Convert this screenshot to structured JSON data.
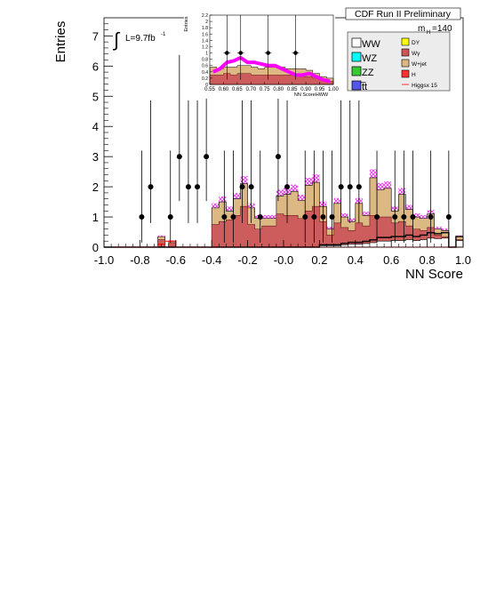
{
  "chart_data": [
    {
      "type": "histogram",
      "title": "CDF Run II Preliminary",
      "xlabel": "NN Score",
      "ylabel": "Entries",
      "xlim": [
        -1.0,
        1.0
      ],
      "ylim": [
        0,
        7.6
      ],
      "x_ticks": [
        "-1.0",
        "-0.8",
        "-0.6",
        "-0.4",
        "-0.2",
        "-0.0",
        "0.2",
        "0.4",
        "0.6",
        "0.8",
        "1.0"
      ],
      "y_ticks": [
        "0",
        "1",
        "2",
        "3",
        "4",
        "5",
        "6",
        "7"
      ],
      "luminosity_label": "L=9.7fb",
      "luminosity_exponent": "-1",
      "mass_label": "m",
      "mass_subscript": "H",
      "mass_value": "=140",
      "bin_edges": [
        -1.0,
        -0.98,
        -0.96,
        -0.94,
        -0.92,
        -0.9,
        -0.88,
        -0.86,
        -0.84,
        -0.82,
        -0.8,
        -0.78,
        -0.76,
        -0.74,
        -0.72,
        -0.7,
        -0.68,
        -0.66,
        -0.64,
        -0.62,
        -0.6,
        -0.58,
        -0.56,
        -0.54,
        -0.52,
        -0.5,
        -0.48,
        -0.46,
        -0.44,
        -0.42,
        -0.4,
        -0.38,
        -0.36,
        -0.34,
        -0.32,
        -0.3,
        -0.28,
        -0.26,
        -0.24,
        -0.22,
        -0.2,
        -0.18,
        -0.16,
        -0.14,
        -0.12,
        -0.1,
        -0.08,
        -0.06,
        -0.04,
        -0.02,
        0.0,
        0.02,
        0.04,
        0.06,
        0.08,
        0.1,
        0.12,
        0.14,
        0.16,
        0.18,
        0.2,
        0.22,
        0.24,
        0.26,
        0.28,
        0.3,
        0.32,
        0.34,
        0.36,
        0.38,
        0.4,
        0.42,
        0.44,
        0.46,
        0.48,
        0.5,
        0.52,
        0.54,
        0.56,
        0.58,
        0.6,
        0.62,
        0.64,
        0.66,
        0.68,
        0.7,
        0.72,
        0.74,
        0.76,
        0.78,
        0.8,
        0.82,
        0.84,
        0.86,
        0.88,
        0.9,
        0.92,
        0.94,
        0.96,
        0.98,
        1.0
      ],
      "background_total": [
        0.0,
        0.0,
        0.0,
        0.0,
        0.0,
        0.0,
        0.0,
        0.0,
        0.0,
        0.0,
        0.0,
        0.0,
        0.0,
        0.0,
        0.0,
        0.35,
        0.35,
        0.0,
        0.2,
        0.2,
        0.0,
        0.0,
        0.0,
        0.0,
        0.0,
        0.0,
        0.0,
        0.0,
        0.0,
        0.0,
        1.3,
        1.3,
        1.5,
        1.5,
        1.2,
        1.2,
        1.6,
        1.6,
        2.1,
        2.1,
        1.3,
        1.3,
        0.95,
        0.95,
        0.95,
        0.95,
        0.95,
        0.95,
        1.7,
        1.7,
        1.75,
        1.75,
        1.85,
        1.85,
        1.55,
        1.55,
        2.05,
        2.05,
        2.15,
        2.15,
        1.35,
        1.35,
        0.6,
        0.6,
        1.45,
        1.45,
        1.0,
        1.0,
        0.85,
        0.85,
        1.45,
        1.45,
        1.05,
        1.05,
        2.3,
        2.3,
        1.9,
        1.9,
        1.95,
        1.95,
        1.2,
        1.2,
        1.75,
        1.75,
        1.25,
        1.25,
        1.0,
        1.0,
        0.95,
        0.95,
        1.1,
        1.1,
        0.6,
        0.6,
        0.55,
        0.55,
        0.0,
        0.0,
        0.35,
        0.35
      ],
      "wjet_top": [
        0.0,
        0.0,
        0.0,
        0.0,
        0.0,
        0.0,
        0.0,
        0.0,
        0.0,
        0.0,
        0.0,
        0.0,
        0.0,
        0.0,
        0.0,
        0.35,
        0.35,
        0.0,
        0.2,
        0.2,
        0.0,
        0.0,
        0.0,
        0.0,
        0.0,
        0.0,
        0.0,
        0.0,
        0.0,
        0.0,
        1.3,
        1.3,
        1.5,
        1.5,
        1.2,
        1.2,
        1.6,
        1.6,
        2.1,
        2.1,
        1.3,
        1.3,
        0.95,
        0.95,
        0.95,
        0.95,
        0.95,
        0.95,
        1.7,
        1.7,
        1.75,
        1.75,
        1.85,
        1.85,
        1.55,
        1.55,
        2.05,
        2.05,
        2.15,
        2.15,
        1.35,
        1.35,
        0.6,
        0.6,
        1.45,
        1.45,
        1.0,
        1.0,
        0.85,
        0.85,
        1.45,
        1.45,
        1.05,
        1.05,
        2.3,
        2.3,
        1.9,
        1.9,
        1.95,
        1.95,
        1.2,
        1.2,
        1.75,
        1.75,
        1.25,
        1.25,
        1.0,
        1.0,
        0.95,
        0.95,
        1.1,
        1.1,
        0.6,
        0.6,
        0.55,
        0.55,
        0.0,
        0.0,
        0.35,
        0.35
      ],
      "wgamma_top": [
        0.0,
        0.0,
        0.0,
        0.0,
        0.0,
        0.0,
        0.0,
        0.0,
        0.0,
        0.0,
        0.0,
        0.0,
        0.0,
        0.0,
        0.0,
        0.25,
        0.25,
        0.0,
        0.15,
        0.15,
        0.0,
        0.0,
        0.0,
        0.0,
        0.0,
        0.0,
        0.0,
        0.0,
        0.0,
        0.0,
        0.75,
        0.75,
        0.85,
        0.85,
        0.9,
        0.9,
        1.05,
        1.05,
        1.35,
        1.35,
        0.75,
        0.75,
        0.6,
        0.6,
        0.7,
        0.7,
        0.7,
        0.7,
        1.1,
        1.1,
        1.05,
        1.05,
        1.05,
        1.05,
        0.95,
        0.95,
        1.2,
        1.2,
        1.35,
        1.35,
        0.85,
        0.85,
        0.4,
        0.4,
        0.8,
        0.8,
        0.65,
        0.65,
        0.55,
        0.55,
        0.8,
        0.8,
        0.7,
        0.7,
        1.05,
        1.05,
        1.0,
        1.0,
        1.0,
        1.0,
        0.8,
        0.8,
        0.85,
        0.85,
        0.7,
        0.7,
        0.6,
        0.6,
        0.55,
        0.55,
        0.65,
        0.65,
        0.4,
        0.4,
        0.35,
        0.35,
        0.0,
        0.0,
        0.25,
        0.25
      ],
      "ww_top": [
        0.0,
        0.0,
        0.0,
        0.0,
        0.0,
        0.0,
        0.0,
        0.0,
        0.0,
        0.0,
        0.0,
        0.0,
        0.0,
        0.0,
        0.0,
        0.0,
        0.0,
        0.0,
        0.0,
        0.0,
        0.0,
        0.0,
        0.0,
        0.0,
        0.0,
        0.0,
        0.0,
        0.0,
        0.0,
        0.0,
        0.0,
        0.0,
        0.0,
        0.0,
        0.0,
        0.0,
        0.0,
        0.0,
        0.0,
        0.0,
        0.0,
        0.0,
        0.0,
        0.0,
        0.0,
        0.0,
        0.0,
        0.0,
        0.0,
        0.0,
        0.0,
        0.0,
        0.0,
        0.0,
        0.0,
        0.0,
        0.0,
        0.0,
        0.0,
        0.0,
        0.05,
        0.05,
        0.05,
        0.05,
        0.05,
        0.05,
        0.08,
        0.08,
        0.1,
        0.1,
        0.1,
        0.1,
        0.12,
        0.12,
        0.15,
        0.15,
        0.2,
        0.2,
        0.2,
        0.2,
        0.22,
        0.22,
        0.22,
        0.22,
        0.25,
        0.25,
        0.22,
        0.22,
        0.25,
        0.25,
        0.3,
        0.3,
        0.28,
        0.28,
        0.3,
        0.3,
        0.0,
        0.0,
        0.22,
        0.22
      ],
      "higgs_signal": [
        0.0,
        0.0,
        0.0,
        0.0,
        0.0,
        0.0,
        0.0,
        0.0,
        0.0,
        0.0,
        0.0,
        0.0,
        0.0,
        0.0,
        0.0,
        0.1,
        0.1,
        0.2,
        0.2,
        0.2,
        0.0,
        0.0,
        0.0,
        0.0,
        0.0,
        0.0,
        0.0,
        0.0,
        0.0,
        0.0,
        0.0,
        0.0,
        0.0,
        0.0,
        0.0,
        0.0,
        0.0,
        0.0,
        0.0,
        0.0,
        0.0,
        0.0,
        0.0,
        0.0,
        0.0,
        0.0,
        0.0,
        0.0,
        0.0,
        0.0,
        0.0,
        0.0,
        0.0,
        0.0,
        0.0,
        0.0,
        0.0,
        0.0,
        0.0,
        0.0,
        0.0,
        0.0,
        0.0,
        0.0,
        0.0,
        0.0,
        0.0,
        0.0,
        0.0,
        0.0,
        0.0,
        0.0,
        0.0,
        0.0,
        0.0,
        0.0,
        0.0,
        0.0,
        0.0,
        0.0,
        0.0,
        0.0,
        0.0,
        0.0,
        0.0,
        0.0,
        0.0,
        0.0,
        0.0,
        0.0,
        0.0,
        0.0,
        0.0,
        0.0,
        0.0,
        0.0,
        0.0,
        0.0,
        0.0,
        0.0
      ],
      "data_points": [
        {
          "x": -0.79,
          "y": 1
        },
        {
          "x": -0.74,
          "y": 2
        },
        {
          "x": -0.63,
          "y": 1
        },
        {
          "x": -0.58,
          "y": 3
        },
        {
          "x": -0.53,
          "y": 2
        },
        {
          "x": -0.48,
          "y": 2
        },
        {
          "x": -0.43,
          "y": 3
        },
        {
          "x": -0.33,
          "y": 1
        },
        {
          "x": -0.28,
          "y": 1
        },
        {
          "x": -0.23,
          "y": 2
        },
        {
          "x": -0.18,
          "y": 2
        },
        {
          "x": -0.13,
          "y": 1
        },
        {
          "x": -0.03,
          "y": 3
        },
        {
          "x": 0.02,
          "y": 2
        },
        {
          "x": 0.12,
          "y": 1
        },
        {
          "x": 0.17,
          "y": 1
        },
        {
          "x": 0.22,
          "y": 1
        },
        {
          "x": 0.27,
          "y": 1
        },
        {
          "x": 0.32,
          "y": 2
        },
        {
          "x": 0.37,
          "y": 2
        },
        {
          "x": 0.42,
          "y": 2
        },
        {
          "x": 0.52,
          "y": 1
        },
        {
          "x": 0.62,
          "y": 1
        },
        {
          "x": 0.67,
          "y": 1
        },
        {
          "x": 0.72,
          "y": 1
        },
        {
          "x": 0.82,
          "y": 1
        },
        {
          "x": 0.92,
          "y": 1
        }
      ],
      "legend_placement": "top-right",
      "legend_left": [
        {
          "name": "WW",
          "color": "#ffffff"
        },
        {
          "name": "WZ",
          "color": "#00ffff"
        },
        {
          "name": "ZZ",
          "color": "#33cc33"
        },
        {
          "name": "t̅t",
          "color": "#5555ee"
        }
      ],
      "legend_right": [
        {
          "name": "DY",
          "color": "#ffff00"
        },
        {
          "name": "Wγ",
          "color": "#cc5555"
        },
        {
          "name": "W+jet",
          "color": "#ddb883"
        },
        {
          "name": "H",
          "color": "#ff3333"
        },
        {
          "name": "Higgsx 15",
          "color": "#ff3333"
        }
      ],
      "colors": {
        "wjet": "#dcb883",
        "wgamma": "#cd5c5c",
        "ww": "#ffffff",
        "higgs": "#ff0000",
        "uncertainty": "#ff00ff",
        "data": "#000000"
      }
    },
    {
      "type": "histogram",
      "title": "",
      "xlabel": "NN ScoreHWW",
      "ylabel": "Entries",
      "xlim": [
        0.55,
        1.0
      ],
      "ylim": [
        0,
        2.2
      ],
      "x_ticks": [
        "0.55",
        "0.60",
        "0.65",
        "0.70",
        "0.75",
        "0.80",
        "0.85",
        "0.90",
        "0.95",
        "1.00"
      ],
      "y_ticks": [
        "0",
        "0.2",
        "0.4",
        "0.6",
        "0.8",
        "1",
        "1.2",
        "1.4",
        "1.6",
        "1.8",
        "2",
        "2.2"
      ],
      "bin_edges": [
        0.55,
        0.575,
        0.6,
        0.625,
        0.65,
        0.675,
        0.7,
        0.725,
        0.75,
        0.775,
        0.8,
        0.825,
        0.85,
        0.875,
        0.9,
        0.925,
        0.95,
        0.975,
        1.0
      ],
      "background_total": [
        0.55,
        0.5,
        0.55,
        0.55,
        0.6,
        0.6,
        0.55,
        0.5,
        0.55,
        0.55,
        0.55,
        0.5,
        0.5,
        0.5,
        0.45,
        0.35,
        0.25,
        0.2
      ],
      "background_base": [
        0.3,
        0.3,
        0.35,
        0.3,
        0.35,
        0.35,
        0.3,
        0.3,
        0.3,
        0.3,
        0.3,
        0.3,
        0.3,
        0.25,
        0.25,
        0.2,
        0.15,
        0.1
      ],
      "signal_band": [
        0.4,
        0.5,
        0.7,
        0.75,
        0.85,
        0.7,
        0.7,
        0.65,
        0.6,
        0.6,
        0.5,
        0.4,
        0.3,
        0.3,
        0.35,
        0.25,
        0.15,
        0.1
      ],
      "data_points": [
        {
          "x": 0.6125,
          "y": 1
        },
        {
          "x": 0.6625,
          "y": 1
        },
        {
          "x": 0.7625,
          "y": 1
        },
        {
          "x": 0.8625,
          "y": 1
        }
      ],
      "colors": {
        "background": "#dcb883",
        "base": "#cd5c5c",
        "signal_band": "#ff00ff",
        "data": "#000000"
      }
    }
  ]
}
